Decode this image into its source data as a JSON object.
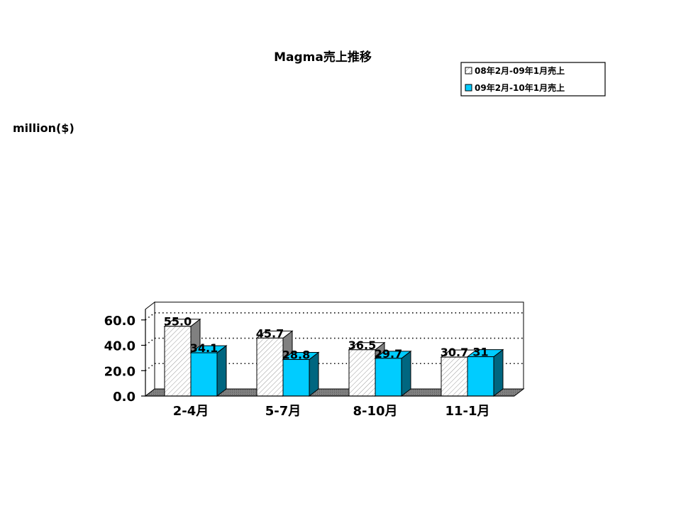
{
  "chart_data": {
    "type": "bar",
    "title": "Magma売上推移",
    "ylabel": "million($)",
    "categories": [
      "2-4月",
      "5-7月",
      "8-10月",
      "11-1月"
    ],
    "series": [
      {
        "name": "08年2月-09年1月売上",
        "values": [
          55.0,
          45.7,
          36.5,
          30.7
        ],
        "labels": [
          "55.0",
          "45.7",
          "36.5",
          "30.7"
        ],
        "color": "#ffffff",
        "pattern": "hatched"
      },
      {
        "name": "09年2月-10年1月売上",
        "values": [
          34.1,
          28.8,
          29.7,
          31.0
        ],
        "labels": [
          "34.1",
          "28.8",
          "29.7",
          "31"
        ],
        "color": "#00ccff"
      }
    ],
    "ylim": [
      0,
      60
    ],
    "yticks": [
      0,
      20,
      40,
      60
    ],
    "ytick_labels": [
      "0.0",
      "20.0",
      "40.0",
      "60.0"
    ],
    "grid": "dotted",
    "legend_position": "top-right",
    "style": "3d-clustered"
  }
}
